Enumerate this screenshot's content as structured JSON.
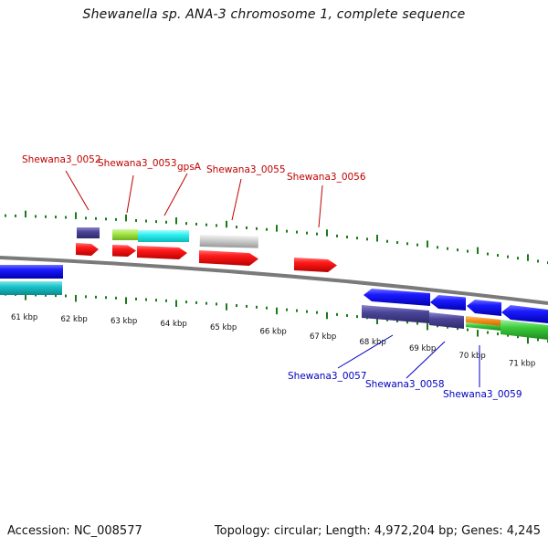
{
  "title": "Shewanella sp. ANA-3 chromosome 1, complete sequence",
  "footer": {
    "accession": "Accession: NC_008577",
    "summary": "Topology: circular; Length: 4,972,204 bp; Genes: 4,245"
  },
  "scale": {
    "labels": [
      "61 kbp",
      "62 kbp",
      "63 kbp",
      "64 kbp",
      "65 kbp",
      "66 kbp",
      "67 kbp",
      "68 kbp",
      "69 kbp",
      "70 kbp",
      "71 kbp"
    ]
  },
  "genes_top": [
    {
      "name": "Shewana3_0052",
      "color": "#c00000"
    },
    {
      "name": "Shewana3_0053",
      "color": "#c00000"
    },
    {
      "name": "gpsA",
      "color": "#c00000"
    },
    {
      "name": "Shewana3_0055",
      "color": "#c00000"
    },
    {
      "name": "Shewana3_0056",
      "color": "#c00000"
    }
  ],
  "genes_bottom": [
    {
      "name": "Shewana3_0057",
      "color": "#0000c0"
    },
    {
      "name": "Shewana3_0058",
      "color": "#0000c0"
    },
    {
      "name": "Shewana3_0059",
      "color": "#0000c0"
    }
  ],
  "colors": {
    "ticks": "#1a7a1a",
    "backbone": "#808080",
    "forward_cds": "#ff1010",
    "reverse_cds": "#1010ff",
    "feature_slate": "#4b4599",
    "feature_cyan": "#19c2c9",
    "feature_lime": "#a4e84a",
    "feature_aqua": "#2bf0f0",
    "feature_grey": "#c8c8c8",
    "feature_orange": "#f7931e",
    "feature_green": "#3ccc3c"
  }
}
